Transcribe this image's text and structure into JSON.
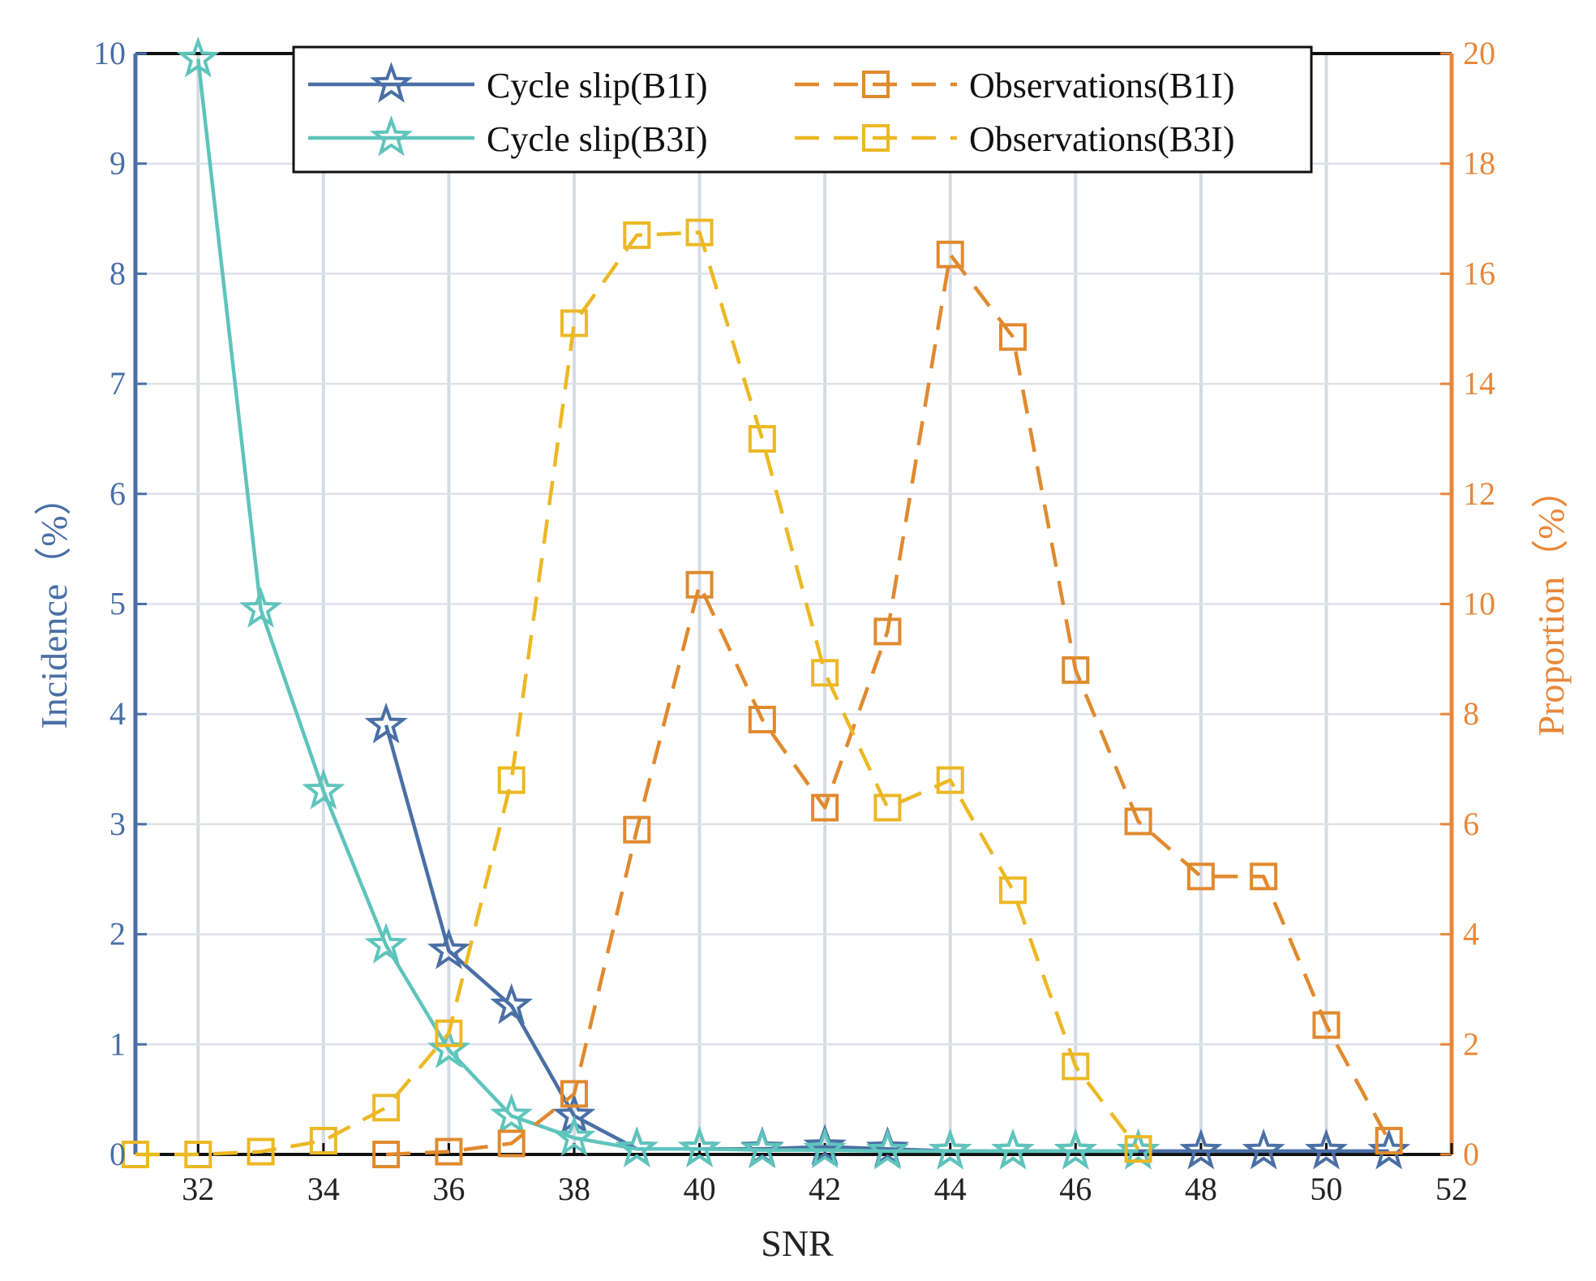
{
  "chart_data": {
    "type": "line",
    "xlabel": "SNR",
    "ylabel_left": "Incidence（%）",
    "ylabel_right": "Proportion（%）",
    "xlim": [
      31,
      52
    ],
    "ylim_left": [
      0,
      10
    ],
    "ylim_right": [
      0,
      20
    ],
    "xticks": [
      "32",
      "34",
      "36",
      "38",
      "40",
      "42",
      "44",
      "46",
      "48",
      "50",
      "52"
    ],
    "yticks_left": [
      "0",
      "1",
      "2",
      "3",
      "4",
      "5",
      "6",
      "7",
      "8",
      "9",
      "10"
    ],
    "yticks_right": [
      "0",
      "2",
      "4",
      "6",
      "8",
      "10",
      "12",
      "14",
      "16",
      "18",
      "20"
    ],
    "grid": true,
    "legend_position": "top",
    "colors": {
      "cycle_b1i": "#4a6fa5",
      "cycle_b3i": "#5ec4bc",
      "obs_b1i": "#e08a2e",
      "obs_b3i": "#ecb824",
      "left_axis": "#4a6fa5",
      "right_axis": "#e8873a"
    },
    "series": [
      {
        "name": "Cycle slip(B1I)",
        "axis": "left",
        "marker": "star",
        "style": "solid",
        "color_key": "cycle_b1i",
        "x": [
          35,
          36,
          37,
          38,
          39,
          40,
          41,
          42,
          43,
          44,
          45,
          46,
          47,
          48,
          49,
          50,
          51
        ],
        "values": [
          3.9,
          1.85,
          1.35,
          0.35,
          0.05,
          0.05,
          0.05,
          0.07,
          0.05,
          0.03,
          0.03,
          0.03,
          0.03,
          0.03,
          0.03,
          0.03,
          0.03
        ]
      },
      {
        "name": "Cycle slip(B3I)",
        "axis": "left",
        "marker": "star",
        "style": "solid",
        "color_key": "cycle_b3i",
        "x": [
          32,
          33,
          34,
          35,
          36,
          37,
          38,
          39,
          40,
          41,
          42,
          43,
          44,
          45,
          46,
          47
        ],
        "values": [
          9.95,
          4.95,
          3.3,
          1.9,
          0.95,
          0.35,
          0.15,
          0.05,
          0.05,
          0.04,
          0.04,
          0.03,
          0.03,
          0.03,
          0.03,
          0.03
        ]
      },
      {
        "name": "Observations(B1I)",
        "axis": "right",
        "marker": "square",
        "style": "dashed",
        "color_key": "obs_b1i",
        "x": [
          35,
          36,
          37,
          38,
          39,
          40,
          41,
          42,
          43,
          44,
          45,
          46,
          47,
          48,
          49,
          50,
          51
        ],
        "values": [
          0.0,
          0.05,
          0.2,
          1.1,
          5.9,
          10.35,
          7.9,
          6.3,
          9.5,
          16.35,
          14.85,
          8.8,
          6.05,
          5.05,
          5.05,
          2.35,
          0.25
        ]
      },
      {
        "name": "Observations(B3I)",
        "axis": "right",
        "marker": "square",
        "style": "dashed",
        "color_key": "obs_b3i",
        "x": [
          31,
          32,
          33,
          34,
          35,
          36,
          37,
          38,
          39,
          40,
          41,
          42,
          43,
          44,
          45,
          46,
          47
        ],
        "values": [
          0.0,
          0.0,
          0.05,
          0.25,
          0.85,
          2.2,
          6.8,
          15.1,
          16.7,
          16.75,
          13.0,
          8.75,
          6.3,
          6.8,
          4.8,
          1.6,
          0.1
        ]
      }
    ]
  }
}
